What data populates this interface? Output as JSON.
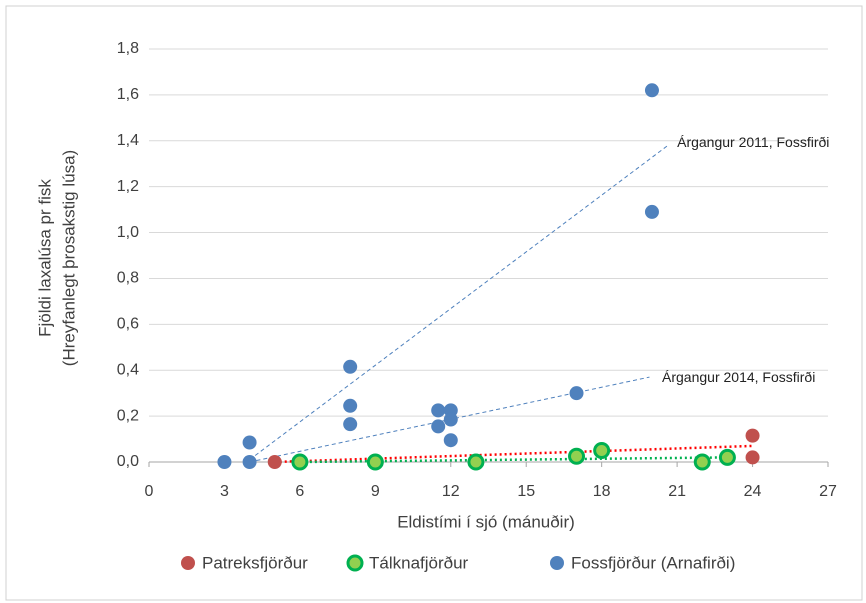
{
  "chart_data": {
    "type": "scatter",
    "xlabel": "Eldistími í sjó (mánuðir)",
    "ylabel": [
      "Fjöldi laxalúsa pr fisk",
      "(Hreyfanlegt þrosakstig lúsa)"
    ],
    "xlim": [
      0,
      27
    ],
    "xticks": [
      0,
      3,
      6,
      9,
      12,
      15,
      18,
      21,
      24,
      27
    ],
    "ylim": [
      0,
      1.8
    ],
    "yticks": [
      {
        "value": 0,
        "label": "0,0"
      },
      {
        "value": 0.2,
        "label": "0,2"
      },
      {
        "value": 0.4,
        "label": "0,4"
      },
      {
        "value": 0.6,
        "label": "0,6"
      },
      {
        "value": 0.8,
        "label": "0,8"
      },
      {
        "value": 1.0,
        "label": "1,0"
      },
      {
        "value": 1.2,
        "label": "1,2"
      },
      {
        "value": 1.4,
        "label": "1,4"
      },
      {
        "value": 1.6,
        "label": "1,6"
      },
      {
        "value": 1.8,
        "label": "1,8"
      }
    ],
    "grid": true,
    "legend": "bottom",
    "series": [
      {
        "name": "Patreksfjörður",
        "color": "#c0504d",
        "x": [
          5,
          24,
          24
        ],
        "values": [
          0,
          0.115,
          0.02
        ]
      },
      {
        "name": "Tálknafjörður",
        "color": "#00b050",
        "x": [
          6,
          9,
          13,
          17,
          18,
          22,
          23
        ],
        "values": [
          0,
          0,
          0,
          0.025,
          0.05,
          0,
          0.02
        ]
      },
      {
        "name": "Fossfjörður (Arnafirði)",
        "color": "#4f81bd",
        "x": [
          3,
          4,
          4,
          8,
          8,
          8,
          11.5,
          12,
          12,
          11.5,
          12,
          17,
          20,
          20
        ],
        "values": [
          0,
          0,
          0.085,
          0.415,
          0.245,
          0.165,
          0.225,
          0.225,
          0.185,
          0.155,
          0.095,
          0.3,
          1.62,
          1.09
        ]
      }
    ],
    "trendlines": [
      {
        "color": "#4f81bd",
        "style": "dashed",
        "x": [
          4,
          20.6
        ],
        "values": [
          0.01,
          1.377
        ]
      },
      {
        "color": "#4f81bd",
        "style": "dashed",
        "x": [
          4,
          19.9
        ],
        "values": [
          0,
          0.37
        ]
      },
      {
        "color": "#ff0000",
        "style": "dotted",
        "x": [
          5,
          24
        ],
        "values": [
          0,
          0.07
        ]
      },
      {
        "color": "#00b050",
        "style": "dotted",
        "x": [
          6,
          23
        ],
        "values": [
          0,
          0.02
        ]
      }
    ],
    "annotations": [
      {
        "text": "Árgangur 2011, Fossfirði",
        "x": 21,
        "y": 1.39
      },
      {
        "text": "Árgangur 2014, Fossfirði",
        "x": 20.4,
        "y": 0.365
      }
    ]
  }
}
